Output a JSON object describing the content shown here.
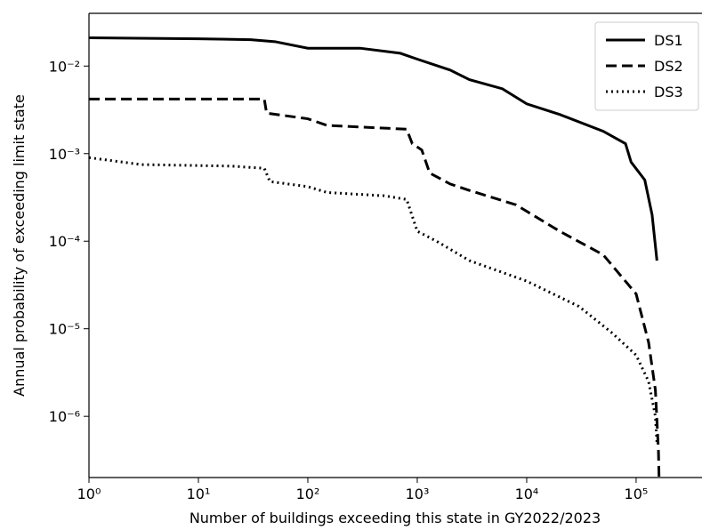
{
  "chart_data": {
    "type": "line",
    "x_label": "Number of buildings exceeding this state in GY2022/2023",
    "y_label": "Annual probability of exceeding limit state",
    "x_scale": "log",
    "y_scale": "log",
    "xlim": [
      1,
      400000
    ],
    "ylim": [
      2e-07,
      0.04
    ],
    "xticks": [
      {
        "value": 1,
        "label": "10⁰"
      },
      {
        "value": 10,
        "label": "10¹"
      },
      {
        "value": 100,
        "label": "10²"
      },
      {
        "value": 1000,
        "label": "10³"
      },
      {
        "value": 10000,
        "label": "10⁴"
      },
      {
        "value": 100000,
        "label": "10⁵"
      }
    ],
    "yticks": [
      {
        "value": 1e-06,
        "label": "10⁻⁶"
      },
      {
        "value": 1e-05,
        "label": "10⁻⁵"
      },
      {
        "value": 0.0001,
        "label": "10⁻⁴"
      },
      {
        "value": 0.001,
        "label": "10⁻³"
      },
      {
        "value": 0.01,
        "label": "10⁻²"
      }
    ],
    "legend": "upper right",
    "series": [
      {
        "name": "DS1",
        "color": "#000000",
        "dash": "solid",
        "x": [
          1,
          10,
          30,
          50,
          100,
          300,
          700,
          1000,
          2000,
          3000,
          6000,
          10000,
          20000,
          50000,
          80000,
          90000,
          120000,
          140000,
          155000
        ],
        "values": [
          0.021,
          0.0205,
          0.02,
          0.019,
          0.016,
          0.016,
          0.014,
          0.012,
          0.009,
          0.007,
          0.0055,
          0.0037,
          0.0028,
          0.0018,
          0.0013,
          0.0008,
          0.0005,
          0.0002,
          6e-05
        ]
      },
      {
        "name": "DS2",
        "color": "#000000",
        "dash": "dashed",
        "x": [
          1,
          40,
          42,
          100,
          150,
          800,
          900,
          1100,
          1300,
          2000,
          3000,
          8000,
          20000,
          50000,
          100000,
          130000,
          150000,
          160000,
          162000
        ],
        "values": [
          0.0042,
          0.0042,
          0.0029,
          0.0025,
          0.0021,
          0.0019,
          0.0013,
          0.0011,
          0.0006,
          0.00045,
          0.00038,
          0.00026,
          0.00013,
          7e-05,
          2.5e-05,
          7e-06,
          2e-06,
          4e-07,
          2e-07
        ]
      },
      {
        "name": "DS3",
        "color": "#000000",
        "dash": "dotted",
        "x": [
          1,
          3,
          20,
          40,
          45,
          100,
          150,
          500,
          800,
          1000,
          1500,
          3000,
          10000,
          30000,
          60000,
          100000,
          130000,
          150000,
          155000
        ],
        "values": [
          0.0009,
          0.00075,
          0.00072,
          0.00068,
          0.00048,
          0.00042,
          0.00036,
          0.00033,
          0.0003,
          0.00013,
          0.0001,
          6e-05,
          3.5e-05,
          1.8e-05,
          9e-06,
          5e-06,
          2.5e-06,
          1e-06,
          5e-07
        ]
      }
    ]
  }
}
